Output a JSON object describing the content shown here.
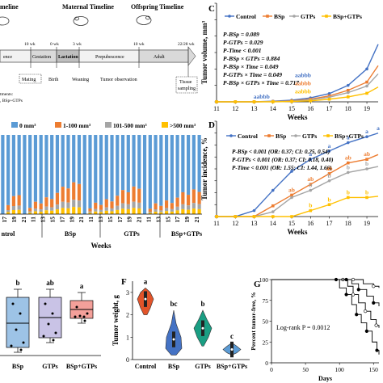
{
  "colors": {
    "control": "#4472c4",
    "bsp": "#ed7d31",
    "gtps": "#a5a5a5",
    "bsp_gtps": "#ffc000",
    "stack_0": "#5b9bd5",
    "stack_1_100": "#ed7d31",
    "stack_101_500": "#a5a5a5",
    "stack_500": "#ffc000",
    "box_bsp": "#9dc3e6",
    "box_gtps": "#c9c3e6",
    "box_bsp_gtps": "#f4a09a",
    "violin_control": "#e2542a",
    "violin_bsp": "#4472c4",
    "violin_gtps": "#1a9e83",
    "violin_bsp_gtps": "#5b9bd5"
  },
  "timeline": {
    "maternal": "Maternal Timeline",
    "offspring": "Offspring Timeline",
    "top_left": "meline",
    "ticks": [
      "10 wk",
      "0 wk",
      "3 wk",
      "10 wk",
      "22/28 wk"
    ],
    "segments": [
      "ence",
      "Gestation",
      "Lactation",
      "Prepubescence",
      "Adult"
    ],
    "mating": "Mating",
    "birth": "Birth",
    "weaning": "Weaning",
    "tumor_obs": "Tumor observation",
    "tissue_1": "Tissue",
    "tissue_2": "sampling",
    "treat_1": "tments:",
    "treat_2": ", BSp+GTPs"
  },
  "panels": {
    "C": "C",
    "D": "D",
    "F": "F",
    "G": "G"
  },
  "chart_data": [
    {
      "id": "C",
      "type": "line",
      "xlabel": "Weeks",
      "ylabel": "Tumor volume, mm³",
      "x_ticks": [
        11,
        12,
        13,
        14,
        15,
        16,
        17,
        18,
        19
      ],
      "y_ticks": [
        0,
        50,
        100,
        150,
        200,
        250,
        300
      ],
      "xlim": [
        11,
        19.6
      ],
      "ylim": [
        0,
        300
      ],
      "legend": [
        "Control",
        "BSp",
        "GTPs",
        "BSp+GTPs"
      ],
      "stats": [
        "P-BSp = 0.089",
        "P-GTPs = 0.029",
        "P-Time < 0.001",
        "P-BSp × GTPs = 0.884",
        "P-BSp × Time = 0.049",
        "P-GTPs × Time = 0.049",
        "P-BSp × GTPs × Time = 0.717"
      ],
      "series": [
        {
          "name": "Control",
          "x": [
            11,
            12,
            13,
            14,
            15,
            16,
            17,
            18,
            19,
            19.6
          ],
          "values": [
            0,
            0,
            0,
            2,
            5,
            12,
            25,
            50,
            100,
            175
          ]
        },
        {
          "name": "BSp",
          "x": [
            11,
            12,
            13,
            14,
            15,
            16,
            17,
            18,
            19,
            19.6
          ],
          "values": [
            0,
            0,
            0,
            1,
            3,
            8,
            18,
            35,
            60,
            110
          ]
        },
        {
          "name": "GTPs",
          "x": [
            11,
            12,
            13,
            14,
            15,
            16,
            17,
            18,
            19,
            19.6
          ],
          "values": [
            0,
            0,
            0,
            1,
            2,
            6,
            14,
            28,
            48,
            85
          ]
        },
        {
          "name": "BSp+GTPs",
          "x": [
            11,
            12,
            13,
            14,
            15,
            16,
            17,
            18,
            19,
            19.6
          ],
          "values": [
            0,
            0,
            0,
            0,
            1,
            3,
            8,
            15,
            26,
            45
          ]
        }
      ],
      "letter_rows": [
        {
          "text": "aabbb",
          "color_key": "control"
        },
        {
          "text": "aabbb",
          "color_key": "bsp"
        },
        {
          "text": "aabbb",
          "color_key": "bsp_gtps"
        }
      ]
    },
    {
      "id": "E-stacked",
      "type": "bar",
      "legend": [
        "0 mm³",
        "1-100 mm³",
        "101-500 mm³",
        ">500 mm³"
      ],
      "xlabel": "Weeks",
      "tick_labels": [
        "17",
        "19",
        "21",
        "11",
        "13",
        "15",
        "17",
        "19",
        "21",
        "11",
        "13",
        "15",
        "17",
        "19",
        "21",
        "11",
        "13",
        "15",
        "17",
        "19",
        "21"
      ],
      "group_labels": [
        "ntrol",
        "BSp",
        "GTPs",
        "BSp+GTPs"
      ],
      "group_sizes": [
        4,
        11,
        11,
        11
      ],
      "group_top_fraction": [
        0.78,
        0.62,
        0.68,
        0.72
      ]
    },
    {
      "id": "D",
      "type": "line",
      "xlabel": "Weeks",
      "ylabel": "Tumor incidence, %",
      "x_ticks": [
        11,
        12,
        13,
        14,
        15,
        16,
        17,
        18,
        19
      ],
      "y_ticks": [
        0,
        10,
        20,
        30,
        40,
        50,
        60,
        70,
        80
      ],
      "xlim": [
        11,
        19.6
      ],
      "ylim": [
        0,
        80
      ],
      "legend": [
        "Control",
        "BSp",
        "GTPs",
        "BSp+GTPs"
      ],
      "stats": [
        "P-BSp < 0.001 (OR: 0.37; CI: 0.25, 0.54)",
        "P-GTPs < 0.001 (OR: 0.37; CI: 0.18, 0.40)",
        "P-Time < 0.001 (OR: 1.55; CI: 1.44, 1.66)"
      ],
      "series": [
        {
          "name": "Control",
          "x": [
            11,
            12,
            13,
            14,
            15,
            16,
            17,
            18,
            19,
            19.6
          ],
          "values": [
            0,
            0,
            5,
            22,
            38,
            48,
            55,
            62,
            67,
            70
          ]
        },
        {
          "name": "BSp",
          "x": [
            11,
            12,
            13,
            14,
            15,
            16,
            17,
            18,
            19,
            19.6
          ],
          "values": [
            0,
            0,
            0,
            9,
            18,
            27,
            36,
            45,
            48,
            52
          ]
        },
        {
          "name": "GTPs",
          "x": [
            11,
            12,
            13,
            14,
            15,
            16,
            17,
            18,
            19,
            19.6
          ],
          "values": [
            0,
            0,
            0,
            4,
            16,
            22,
            30,
            37,
            40,
            42
          ]
        },
        {
          "name": "BSp+GTPs",
          "x": [
            11,
            12,
            13,
            14,
            15,
            16,
            17,
            18,
            19,
            19.6
          ],
          "values": [
            0,
            0,
            0,
            0,
            0,
            5,
            10,
            16,
            16,
            17
          ]
        }
      ],
      "point_labels": {
        "Control": [
          "",
          "",
          "",
          "",
          "",
          "a",
          "a",
          "a",
          "a",
          "a"
        ],
        "BSp": [
          "",
          "",
          "",
          "",
          "ab",
          "ab",
          "ab",
          "ab",
          "ab",
          ""
        ],
        "GTPs": [
          "",
          "",
          "",
          "",
          "",
          "b",
          "b",
          "b",
          "b",
          ""
        ],
        "BSp+GTPs": [
          "",
          "",
          "",
          "",
          "",
          "b",
          "b",
          "b",
          "b",
          ""
        ]
      }
    },
    {
      "id": "E-box",
      "type": "box",
      "categories": [
        "BSp",
        "GTPs",
        "BSp+GTPs"
      ],
      "letters": [
        "b",
        "ab",
        "a"
      ]
    },
    {
      "id": "F",
      "type": "violin",
      "ylabel": "Tumor weight, g",
      "categories": [
        "Control",
        "BSp",
        "GTPs",
        "BSp+GTPs"
      ],
      "y_ticks": [
        0,
        0.5,
        1,
        1.5,
        2,
        2.5,
        3,
        3.5
      ],
      "ylim": [
        0,
        3.5
      ],
      "letters": [
        "a",
        "bc",
        "b",
        "c"
      ],
      "medians": [
        2.7,
        0.9,
        1.4,
        0.45
      ]
    },
    {
      "id": "G",
      "type": "line",
      "xlabel": "Days",
      "ylabel": "Percent tumor-free, %",
      "x_ticks": [
        0,
        50,
        100,
        150
      ],
      "y_ticks": [
        0,
        25,
        50,
        75,
        100
      ],
      "xlim": [
        0,
        158
      ],
      "ylim": [
        0,
        100
      ],
      "annotation": "Log-rank P = 0.0012"
    }
  ]
}
